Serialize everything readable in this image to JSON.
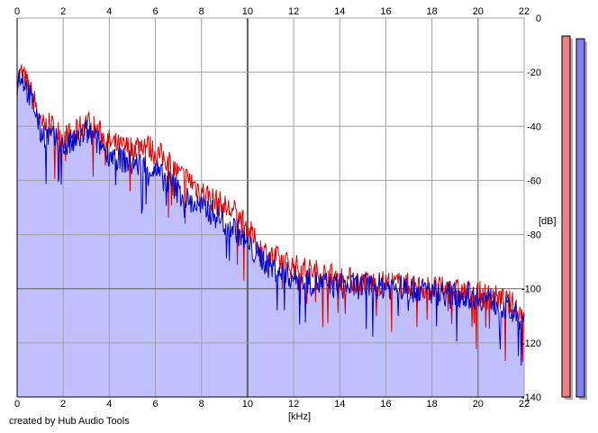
{
  "credit": "created by Hub Audio Tools",
  "colors": {
    "left_channel": "#e00000",
    "right_channel": "#0000c8",
    "fill": "#c0c0ff",
    "grid": "#a0a0a0",
    "major_grid": "#606060",
    "meter_left": "#f08080",
    "meter_right": "#8080f0"
  },
  "chart_data": {
    "type": "line",
    "title": "",
    "xlabel": "[kHz]",
    "ylabel": "[dB]",
    "xlim": [
      0,
      22
    ],
    "ylim": [
      -140,
      0
    ],
    "x_ticks": [
      "0",
      "2",
      "4",
      "6",
      "8",
      "10",
      "12",
      "14",
      "16",
      "18",
      "20",
      "22"
    ],
    "y_ticks": [
      "0",
      "-20",
      "-40",
      "-60",
      "-80",
      "-100",
      "-120",
      "-140"
    ],
    "grid": true,
    "x": [
      0,
      0.2,
      0.5,
      0.8,
      1,
      1.5,
      2,
      2.5,
      3,
      3.5,
      4,
      4.5,
      5,
      5.5,
      6,
      6.5,
      7,
      7.5,
      8,
      8.5,
      9,
      9.5,
      10,
      10.5,
      11,
      12,
      13,
      14,
      15,
      16,
      17,
      18,
      19,
      20,
      20.5,
      21,
      21.5,
      22
    ],
    "series": [
      {
        "values": [
          -24,
          -20,
          -26,
          -32,
          -40,
          -40,
          -44,
          -43,
          -38,
          -42,
          -46,
          -48,
          -48,
          -46,
          -50,
          -52,
          -58,
          -60,
          -64,
          -67,
          -70,
          -72,
          -78,
          -85,
          -88,
          -92,
          -94,
          -96,
          -98,
          -98,
          -99,
          -100,
          -101,
          -102,
          -103,
          -104,
          -106,
          -110
        ]
      },
      {
        "values": [
          -22,
          -21,
          -28,
          -34,
          -42,
          -44,
          -48,
          -46,
          -42,
          -46,
          -50,
          -52,
          -54,
          -54,
          -57,
          -60,
          -64,
          -68,
          -70,
          -72,
          -76,
          -78,
          -84,
          -88,
          -92,
          -96,
          -98,
          -99,
          -99,
          -99,
          -100,
          -101,
          -102,
          -103,
          -104,
          -106,
          -109,
          -114
        ]
      }
    ],
    "level_meters": [
      {
        "channel": "L",
        "level_db": -4
      },
      {
        "channel": "R",
        "level_db": -5
      }
    ]
  }
}
